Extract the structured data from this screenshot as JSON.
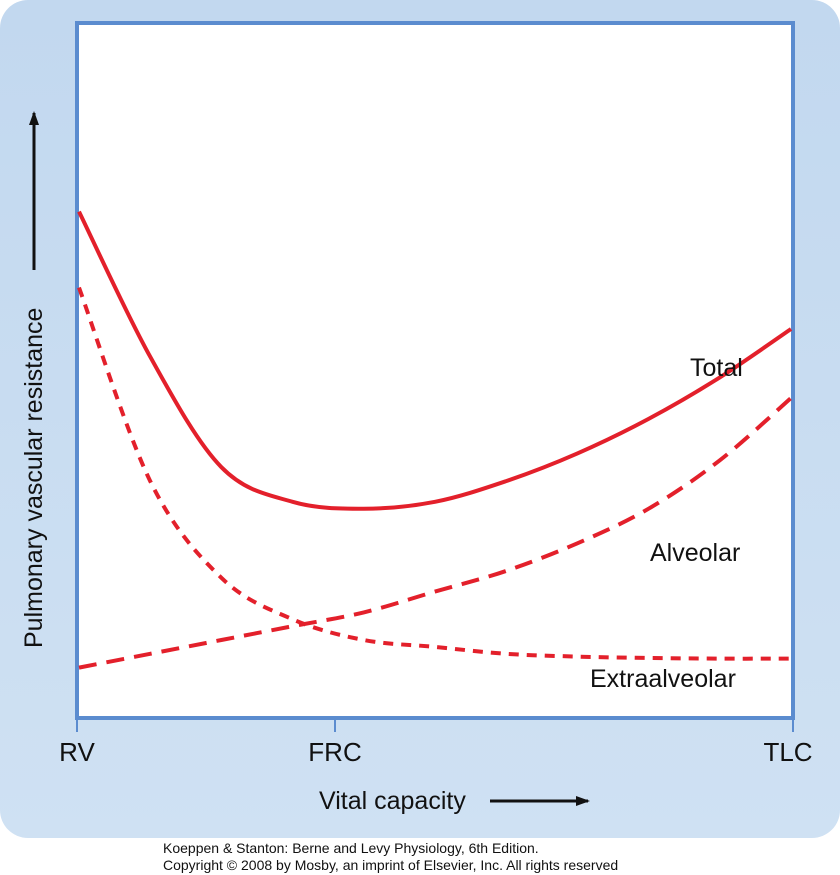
{
  "chart_data": {
    "type": "line",
    "x_categories": [
      "RV",
      "FRC",
      "TLC"
    ],
    "xlabel": "Vital capacity",
    "ylabel": "Pulmonary vascular resistance",
    "x_range": [
      0,
      1
    ],
    "y_range": [
      0,
      1
    ],
    "grid": false,
    "legend": "inline labels at right",
    "series": [
      {
        "name": "Total",
        "style": "solid",
        "x": [
          0.0,
          0.1,
          0.2,
          0.3,
          0.4,
          0.5,
          0.6,
          0.7,
          0.8,
          0.9,
          1.0
        ],
        "y": [
          0.73,
          0.52,
          0.36,
          0.31,
          0.3,
          0.31,
          0.34,
          0.38,
          0.43,
          0.49,
          0.56
        ]
      },
      {
        "name": "Alveolar",
        "style": "dashed",
        "x": [
          0.0,
          0.1,
          0.2,
          0.3,
          0.4,
          0.5,
          0.6,
          0.7,
          0.8,
          0.9,
          1.0
        ],
        "y": [
          0.07,
          0.09,
          0.11,
          0.13,
          0.15,
          0.18,
          0.21,
          0.25,
          0.3,
          0.37,
          0.46
        ]
      },
      {
        "name": "Extraalveolar",
        "style": "dotted",
        "x": [
          0.0,
          0.1,
          0.2,
          0.3,
          0.4,
          0.5,
          0.6,
          0.7,
          0.8,
          0.9,
          1.0
        ],
        "y": [
          0.62,
          0.34,
          0.2,
          0.14,
          0.11,
          0.1,
          0.09,
          0.086,
          0.084,
          0.083,
          0.083
        ]
      }
    ]
  },
  "credit": {
    "line1": "Koeppen & Stanton: Berne and Levy Physiology, 6th Edition.",
    "line2": "Copyright © 2008 by Mosby, an imprint of Elsevier, Inc. All rights reserved"
  },
  "colors": {
    "curve": "#e3202b",
    "plot_border": "#5b8ccf",
    "panel_background": "#c8dcf1",
    "plot_background": "#ffffff"
  }
}
